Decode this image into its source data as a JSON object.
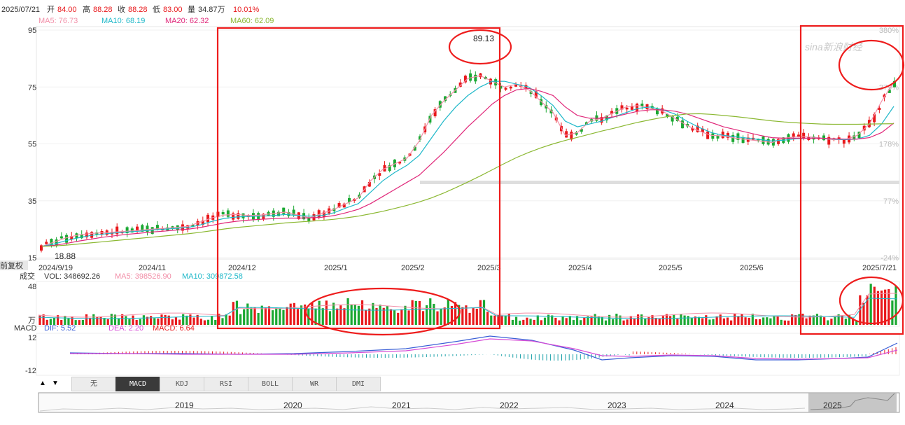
{
  "header": {
    "date": "2025/07/21",
    "open_label": "开",
    "open": "84.00",
    "high_label": "高",
    "high": "88.28",
    "close_label": "收",
    "close": "88.28",
    "low_label": "低",
    "low": "83.00",
    "vol_label": "量",
    "vol": "34.87万",
    "change": "10.01%"
  },
  "ma_legend": [
    {
      "text": "MA5: 76.73",
      "color": "#f28fa8"
    },
    {
      "text": "MA10: 68.19",
      "color": "#1fb8c9"
    },
    {
      "text": "MA20: 62.32",
      "color": "#e0287a"
    },
    {
      "text": "MA60: 62.09",
      "color": "#8bb832"
    }
  ],
  "volume_legend": {
    "label": "成交",
    "vol": "VOL: 348692.26",
    "ma5": "MA5: 398526.90",
    "ma10": "MA10: 309872.58"
  },
  "volume_axis": {
    "top": "48",
    "unit": "万"
  },
  "macd_legend": {
    "label": "MACD",
    "dif": "DIF: 5.52",
    "dea": "DEA: 2.20",
    "macd": "MACD: 6.64"
  },
  "macd_axis": [
    "12",
    "-12"
  ],
  "side_label": "前复权",
  "annotations": {
    "peak": "89.13",
    "trough": "18.88"
  },
  "watermark": "sina新浪财经",
  "colors": {
    "up": "#e8181b",
    "down": "#1aa832",
    "highlight": "#ee1c1c",
    "ma5": "#f28fa8",
    "ma10": "#1fb8c9",
    "ma20": "#e0287a",
    "ma60": "#8bb832",
    "dif": "#3a5fd6",
    "dea": "#d64bd6"
  },
  "indicator_tabs": {
    "items": [
      "无",
      "MACD",
      "KDJ",
      "RSI",
      "BOLL",
      "WR",
      "DMI"
    ],
    "active": "MACD",
    "up_arrow": "▲",
    "down_arrow": "▼"
  },
  "navigator_years": [
    "2019",
    "2020",
    "2021",
    "2022",
    "2023",
    "2024",
    "2025"
  ],
  "chart_data": {
    "type": "candlestick",
    "y_ticks": [
      95,
      75,
      55,
      35,
      15
    ],
    "ylim": [
      15,
      95
    ],
    "right_ticks": [
      "380%",
      "279%",
      "178%",
      "77%",
      "-24%"
    ],
    "x_ticks": [
      "2024/9/19",
      "2024/11",
      "2024/12",
      "2025/1",
      "2025/2",
      "2025/3",
      "2025/4",
      "2025/5",
      "2025/6",
      "2025/7/21"
    ],
    "series": [
      {
        "name": "MA5",
        "values": [
          19.0,
          20.5,
          22.0,
          23.0,
          23.5,
          23.8,
          24.0,
          24.3,
          24.6,
          25.0,
          25.3,
          25.6,
          26.0,
          27.5,
          29.0,
          30.0,
          30.2,
          29.8,
          30.0,
          30.5,
          31.0,
          30.0,
          29.0,
          30.5,
          32.0,
          34.0,
          36.0,
          42.0,
          46.0,
          48.0,
          50.0,
          56.0,
          65.0,
          70.0,
          74.0,
          78.0,
          79.0,
          77.0,
          75.0,
          76.0,
          74.0,
          70.0,
          66.0,
          58.0,
          59.0,
          63.0,
          64.0,
          66.0,
          68.0,
          68.5,
          67.5,
          66.5,
          64.0,
          61.5,
          59.5,
          58.0,
          57.8,
          57.0,
          56.5,
          56.0,
          55.5,
          57.0,
          57.5,
          57.5,
          57.0,
          56.5,
          56.5,
          58.0,
          62.0,
          70.0,
          76.73
        ]
      },
      {
        "name": "MA10",
        "values": [
          19.0,
          19.8,
          21.0,
          22.0,
          22.8,
          23.3,
          23.7,
          24.0,
          24.3,
          24.7,
          25.0,
          25.3,
          25.6,
          26.5,
          27.8,
          28.8,
          29.3,
          29.5,
          29.6,
          29.8,
          30.2,
          29.8,
          29.6,
          29.8,
          30.8,
          32.5,
          34.0,
          38.0,
          42.0,
          45.0,
          47.5,
          51.0,
          57.0,
          63.0,
          68.0,
          72.0,
          75.0,
          77.0,
          77.0,
          76.0,
          75.0,
          72.0,
          68.5,
          63.0,
          61.0,
          62.0,
          63.0,
          64.5,
          66.0,
          67.5,
          68.0,
          67.0,
          65.5,
          63.0,
          60.8,
          59.0,
          58.0,
          57.5,
          57.0,
          56.5,
          56.0,
          56.3,
          56.8,
          57.0,
          57.0,
          56.7,
          56.5,
          56.7,
          58.0,
          62.0,
          68.19
        ]
      },
      {
        "name": "MA20",
        "values": [
          19.0,
          19.3,
          20.0,
          20.8,
          21.5,
          22.2,
          22.7,
          23.2,
          23.6,
          24.0,
          24.3,
          24.7,
          25.0,
          25.6,
          26.4,
          27.2,
          27.8,
          28.2,
          28.5,
          28.7,
          28.9,
          28.9,
          29.0,
          29.2,
          29.8,
          30.8,
          32.0,
          34.0,
          36.5,
          39.0,
          41.5,
          44.0,
          48.0,
          52.0,
          56.5,
          61.0,
          65.0,
          69.0,
          72.0,
          74.0,
          74.5,
          73.5,
          72.0,
          68.0,
          65.0,
          64.0,
          64.0,
          64.5,
          65.5,
          66.5,
          67.0,
          67.0,
          66.5,
          65.5,
          64.0,
          62.5,
          61.0,
          60.0,
          59.0,
          58.0,
          57.2,
          57.0,
          57.0,
          57.0,
          57.0,
          56.8,
          56.7,
          56.7,
          57.2,
          59.0,
          62.32
        ]
      },
      {
        "name": "MA60",
        "values": [
          19.0,
          19.1,
          19.4,
          19.8,
          20.2,
          20.6,
          21.0,
          21.4,
          21.8,
          22.2,
          22.6,
          23.0,
          23.4,
          23.9,
          24.5,
          25.1,
          25.6,
          26.0,
          26.4,
          26.8,
          27.2,
          27.5,
          27.8,
          28.1,
          28.5,
          29.0,
          29.6,
          30.4,
          31.3,
          32.3,
          33.4,
          34.6,
          36.0,
          37.7,
          39.6,
          41.6,
          43.7,
          45.9,
          48.1,
          50.2,
          52.0,
          53.6,
          55.0,
          56.2,
          57.3,
          58.4,
          59.5,
          60.5,
          61.6,
          62.6,
          63.5,
          64.3,
          65.0,
          65.5,
          65.6,
          65.4,
          65.0,
          64.6,
          64.1,
          63.6,
          63.1,
          62.7,
          62.4,
          62.2,
          62.0,
          61.9,
          61.9,
          61.9,
          62.0,
          62.05,
          62.09
        ]
      }
    ]
  }
}
